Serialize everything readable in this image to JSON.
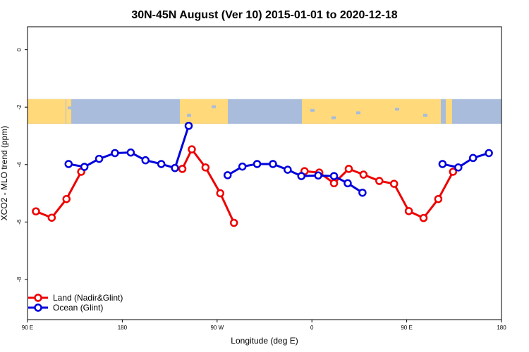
{
  "chart_data": {
    "type": "line",
    "title": "30N-45N August (Ver 10)   2015-01-01 to 2020-12-18",
    "xlabel": "Longitude (deg E)",
    "ylabel": "XCO2 - MLO trend (ppm)",
    "xlim": [
      90,
      540
    ],
    "ylim": [
      -9.4,
      0.8
    ],
    "x_ticks": [
      {
        "value": 90,
        "label": "90 E"
      },
      {
        "value": 180,
        "label": "180"
      },
      {
        "value": 270,
        "label": "90 W"
      },
      {
        "value": 360,
        "label": "0"
      },
      {
        "value": 450,
        "label": "90 E"
      },
      {
        "value": 540,
        "label": "180"
      }
    ],
    "y_ticks": [
      {
        "value": 0,
        "label": "0"
      },
      {
        "value": -2,
        "label": "-2"
      },
      {
        "value": -4,
        "label": "-4"
      },
      {
        "value": -6,
        "label": "-6"
      },
      {
        "value": -8,
        "label": "-8"
      }
    ],
    "map_band": {
      "y_top": -1.72,
      "y_bottom": -2.58,
      "ocean_color": "#a9bcdc",
      "land_color": "#ffd97a"
    },
    "legend_position": "bottom-left",
    "series": [
      {
        "name": "Land (Nadir&Glint)",
        "color": "#ee0000",
        "segments": [
          [
            [
              98,
              -5.63
            ],
            [
              113,
              -5.85
            ],
            [
              127,
              -5.2
            ],
            [
              141,
              -4.25
            ]
          ],
          [
            [
              237,
              -4.15
            ],
            [
              246,
              -3.47
            ],
            [
              259,
              -4.1
            ],
            [
              273,
              -5.0
            ],
            [
              286,
              -6.03
            ]
          ],
          [
            [
              353,
              -4.23
            ],
            [
              367,
              -4.28
            ],
            [
              381,
              -4.65
            ],
            [
              395,
              -4.15
            ],
            [
              409,
              -4.35
            ],
            [
              424,
              -4.57
            ],
            [
              438,
              -4.67
            ],
            [
              452,
              -5.62
            ],
            [
              466,
              -5.86
            ],
            [
              480,
              -5.2
            ],
            [
              494,
              -4.25
            ]
          ]
        ]
      },
      {
        "name": "Ocean (Glint)",
        "color": "#0000dd",
        "segments": [
          [
            [
              129,
              -3.98
            ],
            [
              144,
              -4.08
            ],
            [
              158,
              -3.8
            ],
            [
              173,
              -3.6
            ],
            [
              188,
              -3.58
            ],
            [
              202,
              -3.85
            ],
            [
              217,
              -3.98
            ],
            [
              230,
              -4.12
            ],
            [
              243,
              -2.65
            ]
          ],
          [
            [
              280,
              -4.37
            ],
            [
              294,
              -4.07
            ],
            [
              308,
              -3.98
            ],
            [
              323,
              -3.98
            ],
            [
              337,
              -4.18
            ],
            [
              350,
              -4.4
            ],
            [
              366,
              -4.38
            ],
            [
              381,
              -4.4
            ],
            [
              394,
              -4.65
            ],
            [
              408,
              -4.98
            ]
          ],
          [
            [
              484,
              -3.98
            ],
            [
              499,
              -4.1
            ],
            [
              513,
              -3.77
            ],
            [
              528,
              -3.6
            ]
          ]
        ]
      }
    ]
  }
}
